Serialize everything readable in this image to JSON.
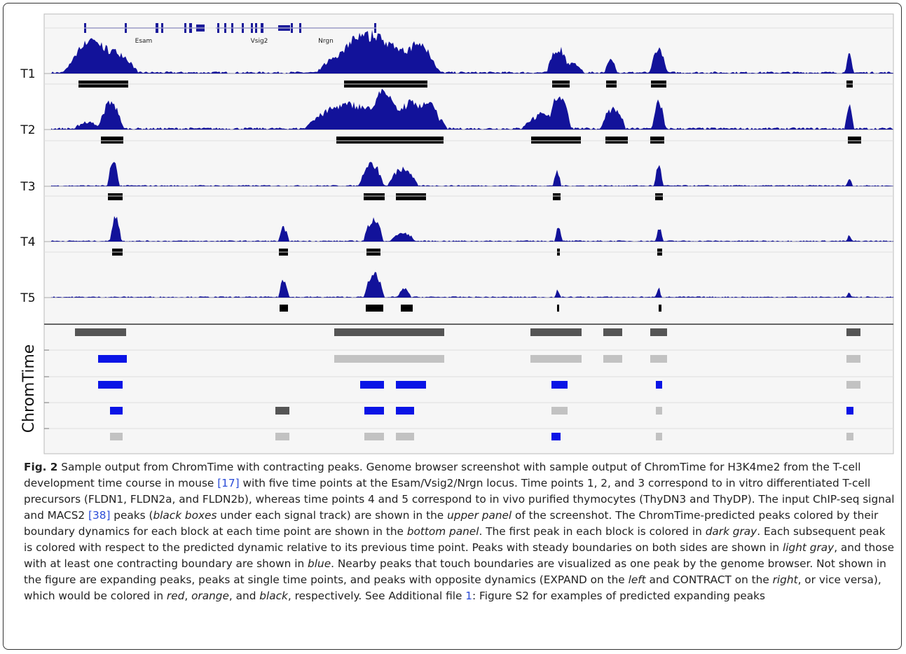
{
  "figure": {
    "genes": [
      "Esam",
      "Vsig2",
      "Nrgn"
    ],
    "tracks": [
      "T1",
      "T2",
      "T3",
      "T4",
      "T5"
    ],
    "panel_label": "ChromTime",
    "caption": [
      {
        "text": "Fig. 2",
        "style": "bold"
      },
      {
        "text": " Sample output from ChromTime with contracting peaks. Genome browser screenshot with sample output of ChromTime for H3K4me2 from the T-cell development time course in mouse ",
        "style": "normal"
      },
      {
        "text": "[17]",
        "style": "link"
      },
      {
        "text": " with five time points at the Esam/Vsig2/Nrgn locus. Time points 1, 2, and 3 correspond to in vitro differentiated T-cell precursors (FLDN1, FLDN2a, and FLDN2b), whereas time points 4 and 5 correspond to in vivo purified thymocytes (ThyDN3 and ThyDP). The input ChIP-seq signal and MACS2 ",
        "style": "normal"
      },
      {
        "text": "[38]",
        "style": "link"
      },
      {
        "text": " peaks (",
        "style": "normal"
      },
      {
        "text": "black boxes",
        "style": "italic"
      },
      {
        "text": " under each signal track) are shown in the ",
        "style": "normal"
      },
      {
        "text": "upper panel",
        "style": "italic"
      },
      {
        "text": " of the screenshot. The ChromTime-predicted peaks colored by their boundary dynamics for each block at each time point are shown in the ",
        "style": "normal"
      },
      {
        "text": "bottom panel",
        "style": "italic"
      },
      {
        "text": ". The first peak in each block is colored in ",
        "style": "normal"
      },
      {
        "text": "dark gray",
        "style": "italic"
      },
      {
        "text": ". Each subsequent peak is colored with respect to the predicted dynamic relative to its previous time point. Peaks with steady boundaries on both sides are shown in ",
        "style": "normal"
      },
      {
        "text": "light gray",
        "style": "italic"
      },
      {
        "text": ", and those with at least one contracting boundary are shown in ",
        "style": "normal"
      },
      {
        "text": "blue",
        "style": "italic"
      },
      {
        "text": ". Nearby peaks that touch boundaries are visualized as one peak by the genome browser. Not shown in the figure are expanding peaks, peaks at single time points, and peaks with opposite dynamics (EXPAND on the ",
        "style": "normal"
      },
      {
        "text": "left",
        "style": "italic"
      },
      {
        "text": " and CONTRACT on the ",
        "style": "normal"
      },
      {
        "text": "right",
        "style": "italic"
      },
      {
        "text": ", or vice versa), which would be colored in ",
        "style": "normal"
      },
      {
        "text": "red",
        "style": "italic"
      },
      {
        "text": ", ",
        "style": "normal"
      },
      {
        "text": "orange",
        "style": "italic"
      },
      {
        "text": ", and ",
        "style": "normal"
      },
      {
        "text": "black",
        "style": "italic"
      },
      {
        "text": ", respectively. See Additional file ",
        "style": "normal"
      },
      {
        "text": "1",
        "style": "link"
      },
      {
        "text": ": Figure S2 for examples of predicted expanding peaks",
        "style": "normal"
      }
    ]
  }
}
